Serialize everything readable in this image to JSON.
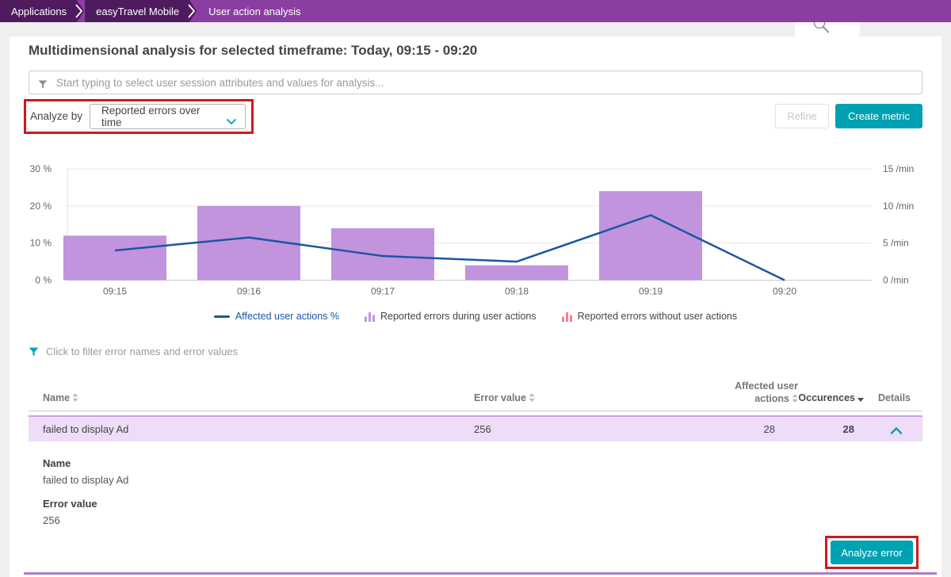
{
  "breadcrumb": {
    "items": [
      "Applications",
      "easyTravel Mobile",
      "User action analysis"
    ]
  },
  "title": "Multidimensional analysis for selected timeframe: Today, 09:15 - 09:20",
  "search": {
    "placeholder": "Start typing to select user session attributes and values for analysis..."
  },
  "analyze_by": {
    "label": "Analyze by",
    "selected_option": "Reported errors over time"
  },
  "toolbar": {
    "refine_label": "Refine",
    "create_metric_label": "Create metric"
  },
  "chart_data": {
    "type": "bar+line",
    "categories": [
      "09:15",
      "09:16",
      "09:17",
      "09:18",
      "09:19",
      "09:20"
    ],
    "left_axis": {
      "unit": "%",
      "min": 0,
      "max": 30,
      "tick_values": [
        30,
        20,
        10,
        0
      ],
      "ticks": [
        "30 %",
        "20 %",
        "10 %",
        "0 %"
      ]
    },
    "right_axis": {
      "unit": "/min",
      "min": 0,
      "max": 15,
      "tick_values": [
        15,
        10,
        5,
        0
      ],
      "ticks": [
        "15 /min",
        "10 /min",
        "5 /min",
        "0 /min"
      ]
    },
    "series": [
      {
        "name": "Affected user actions %",
        "type": "line",
        "axis": "left",
        "color": "#1a56a5",
        "values": [
          8,
          11.5,
          6.5,
          5,
          17.5,
          0
        ]
      },
      {
        "name": "Reported errors during user actions",
        "type": "bar",
        "axis": "right",
        "color": "#c294dd",
        "values": [
          6,
          10,
          7,
          2,
          12,
          null
        ]
      },
      {
        "name": "Reported errors without user actions",
        "type": "bar",
        "axis": "right",
        "color": "#ef8193",
        "values": [
          null,
          null,
          null,
          null,
          null,
          null
        ]
      }
    ],
    "grid": true,
    "legend_position": "bottom"
  },
  "filter_hint": "Click to filter error names and error values",
  "table": {
    "headers": {
      "name": "Name",
      "error_value": "Error value",
      "affected_user_actions": "Affected user actions",
      "occurences": "Occurences",
      "details": "Details"
    },
    "rows": [
      {
        "name": "failed to display Ad",
        "error_value": "256",
        "affected_user_actions": "28",
        "occurences": "28",
        "expanded": true
      }
    ]
  },
  "expanded_details": {
    "name_label": "Name",
    "name_value": "failed to display Ad",
    "error_value_label": "Error value",
    "error_value": "256",
    "analyze_button_label": "Analyze error"
  },
  "colors": {
    "accent_teal": "#00a1b2",
    "bar_purple": "#c294dd",
    "line_blue": "#1a56a5",
    "legend_pink": "#ef8193",
    "row_highlight": "#eedcf8",
    "breadcrumb_bar": "#8a3fa0",
    "breadcrumb_segment": "#4e1c5e",
    "annotation_red": "#d2181b"
  }
}
